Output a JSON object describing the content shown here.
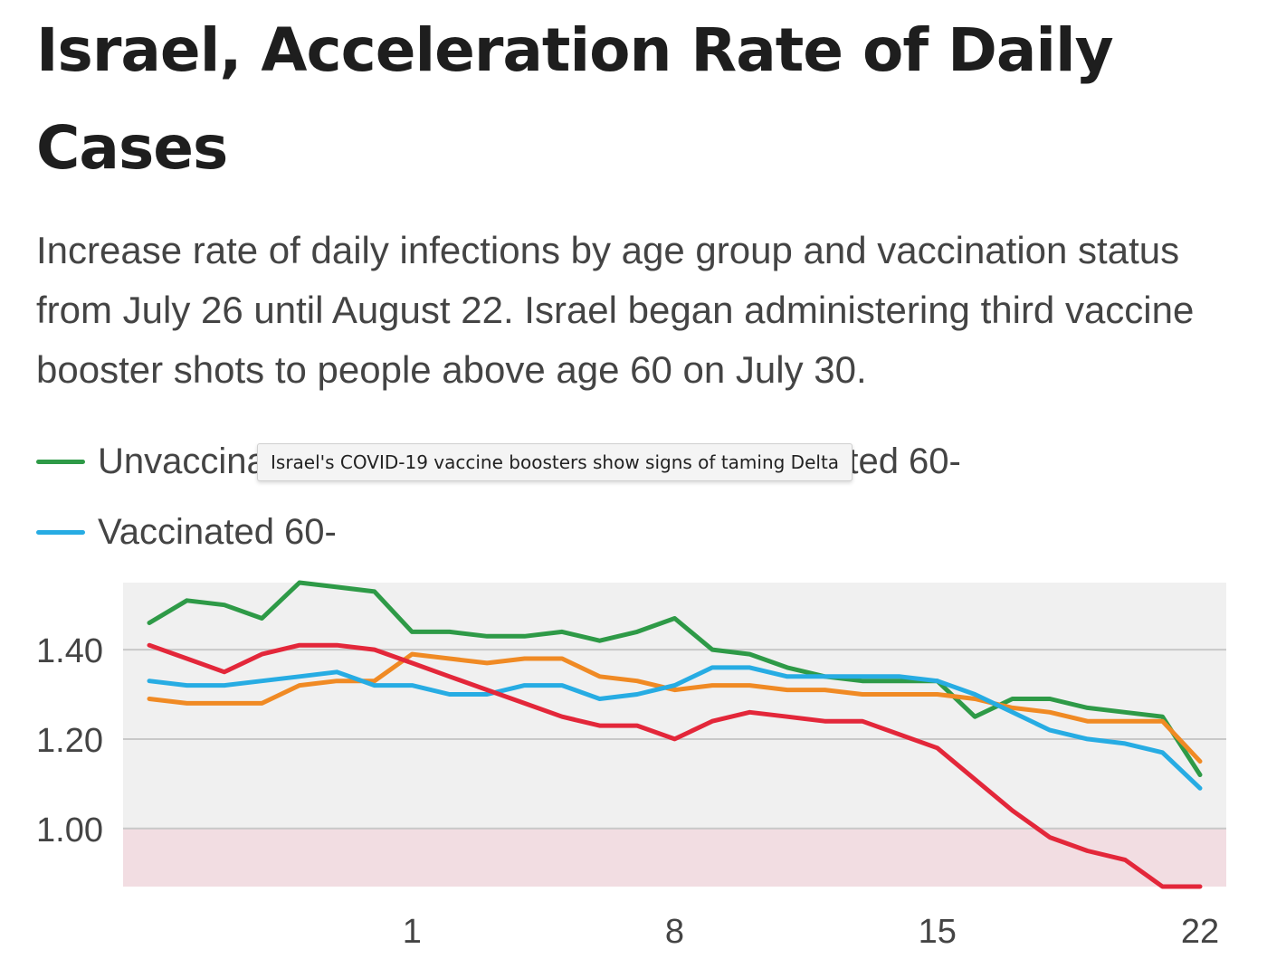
{
  "title": "Israel, Acceleration Rate of Daily Cases",
  "subtitle": "Increase rate of daily infections by age group and vaccination status from July 26 until August 22. Israel began administering third vaccine booster shots to people above age 60 on July 30.",
  "tooltip": "Israel's COVID-19 vaccine boosters show signs of taming Delta",
  "legend": [
    {
      "label": "Unvaccinated 60-",
      "color": "#2e9a47"
    },
    {
      "label": "Vaccinated 60-",
      "color": "#f08a24"
    },
    {
      "label": "Vaccinated 60-",
      "color": "#27ace3"
    }
  ],
  "chart_data": {
    "type": "line",
    "x": [
      -6,
      -5,
      -4,
      -3,
      -2,
      -1,
      0,
      1,
      2,
      3,
      4,
      5,
      6,
      7,
      8,
      9,
      10,
      11,
      12,
      13,
      14,
      15,
      16,
      17,
      18,
      19,
      20,
      21,
      22
    ],
    "x_ticks": [
      1,
      8,
      15,
      22
    ],
    "x_tick_labels": [
      "1",
      "8",
      "15",
      "22"
    ],
    "y_ticks": [
      1.0,
      1.2,
      1.4
    ],
    "y_tick_labels": [
      "1.00",
      "1.20",
      "1.40"
    ],
    "ylim": [
      0.87,
      1.55
    ],
    "xlim": [
      -6.7,
      22.7
    ],
    "grid": true,
    "shaded_band": {
      "from": 0.87,
      "to": 1.0,
      "color": "#f2dde2"
    },
    "series": [
      {
        "name": "Unvaccinated 60-",
        "color": "#2e9a47",
        "values": [
          1.46,
          1.51,
          1.5,
          1.47,
          1.55,
          1.54,
          1.53,
          1.44,
          1.44,
          1.43,
          1.43,
          1.44,
          1.42,
          1.44,
          1.47,
          1.4,
          1.39,
          1.36,
          1.34,
          1.33,
          1.33,
          1.33,
          1.25,
          1.29,
          1.29,
          1.27,
          1.26,
          1.25,
          1.12
        ]
      },
      {
        "name": "Vaccinated 60-",
        "color": "#f08a24",
        "values": [
          1.29,
          1.28,
          1.28,
          1.28,
          1.32,
          1.33,
          1.33,
          1.39,
          1.38,
          1.37,
          1.38,
          1.38,
          1.34,
          1.33,
          1.31,
          1.32,
          1.32,
          1.31,
          1.31,
          1.3,
          1.3,
          1.3,
          1.29,
          1.27,
          1.26,
          1.24,
          1.24,
          1.24,
          1.15
        ]
      },
      {
        "name": "Vaccinated 60-",
        "color": "#27ace3",
        "values": [
          1.33,
          1.32,
          1.32,
          1.33,
          1.34,
          1.35,
          1.32,
          1.32,
          1.3,
          1.3,
          1.32,
          1.32,
          1.29,
          1.3,
          1.32,
          1.36,
          1.36,
          1.34,
          1.34,
          1.34,
          1.34,
          1.33,
          1.3,
          1.26,
          1.22,
          1.2,
          1.19,
          1.17,
          1.09
        ]
      },
      {
        "name": "",
        "color": "#e3273a",
        "values": [
          1.41,
          1.38,
          1.35,
          1.39,
          1.41,
          1.41,
          1.4,
          1.37,
          1.34,
          1.31,
          1.28,
          1.25,
          1.23,
          1.23,
          1.2,
          1.24,
          1.26,
          1.25,
          1.24,
          1.24,
          1.21,
          1.18,
          1.11,
          1.04,
          0.98,
          0.95,
          0.93,
          0.87,
          0.87
        ]
      }
    ]
  }
}
